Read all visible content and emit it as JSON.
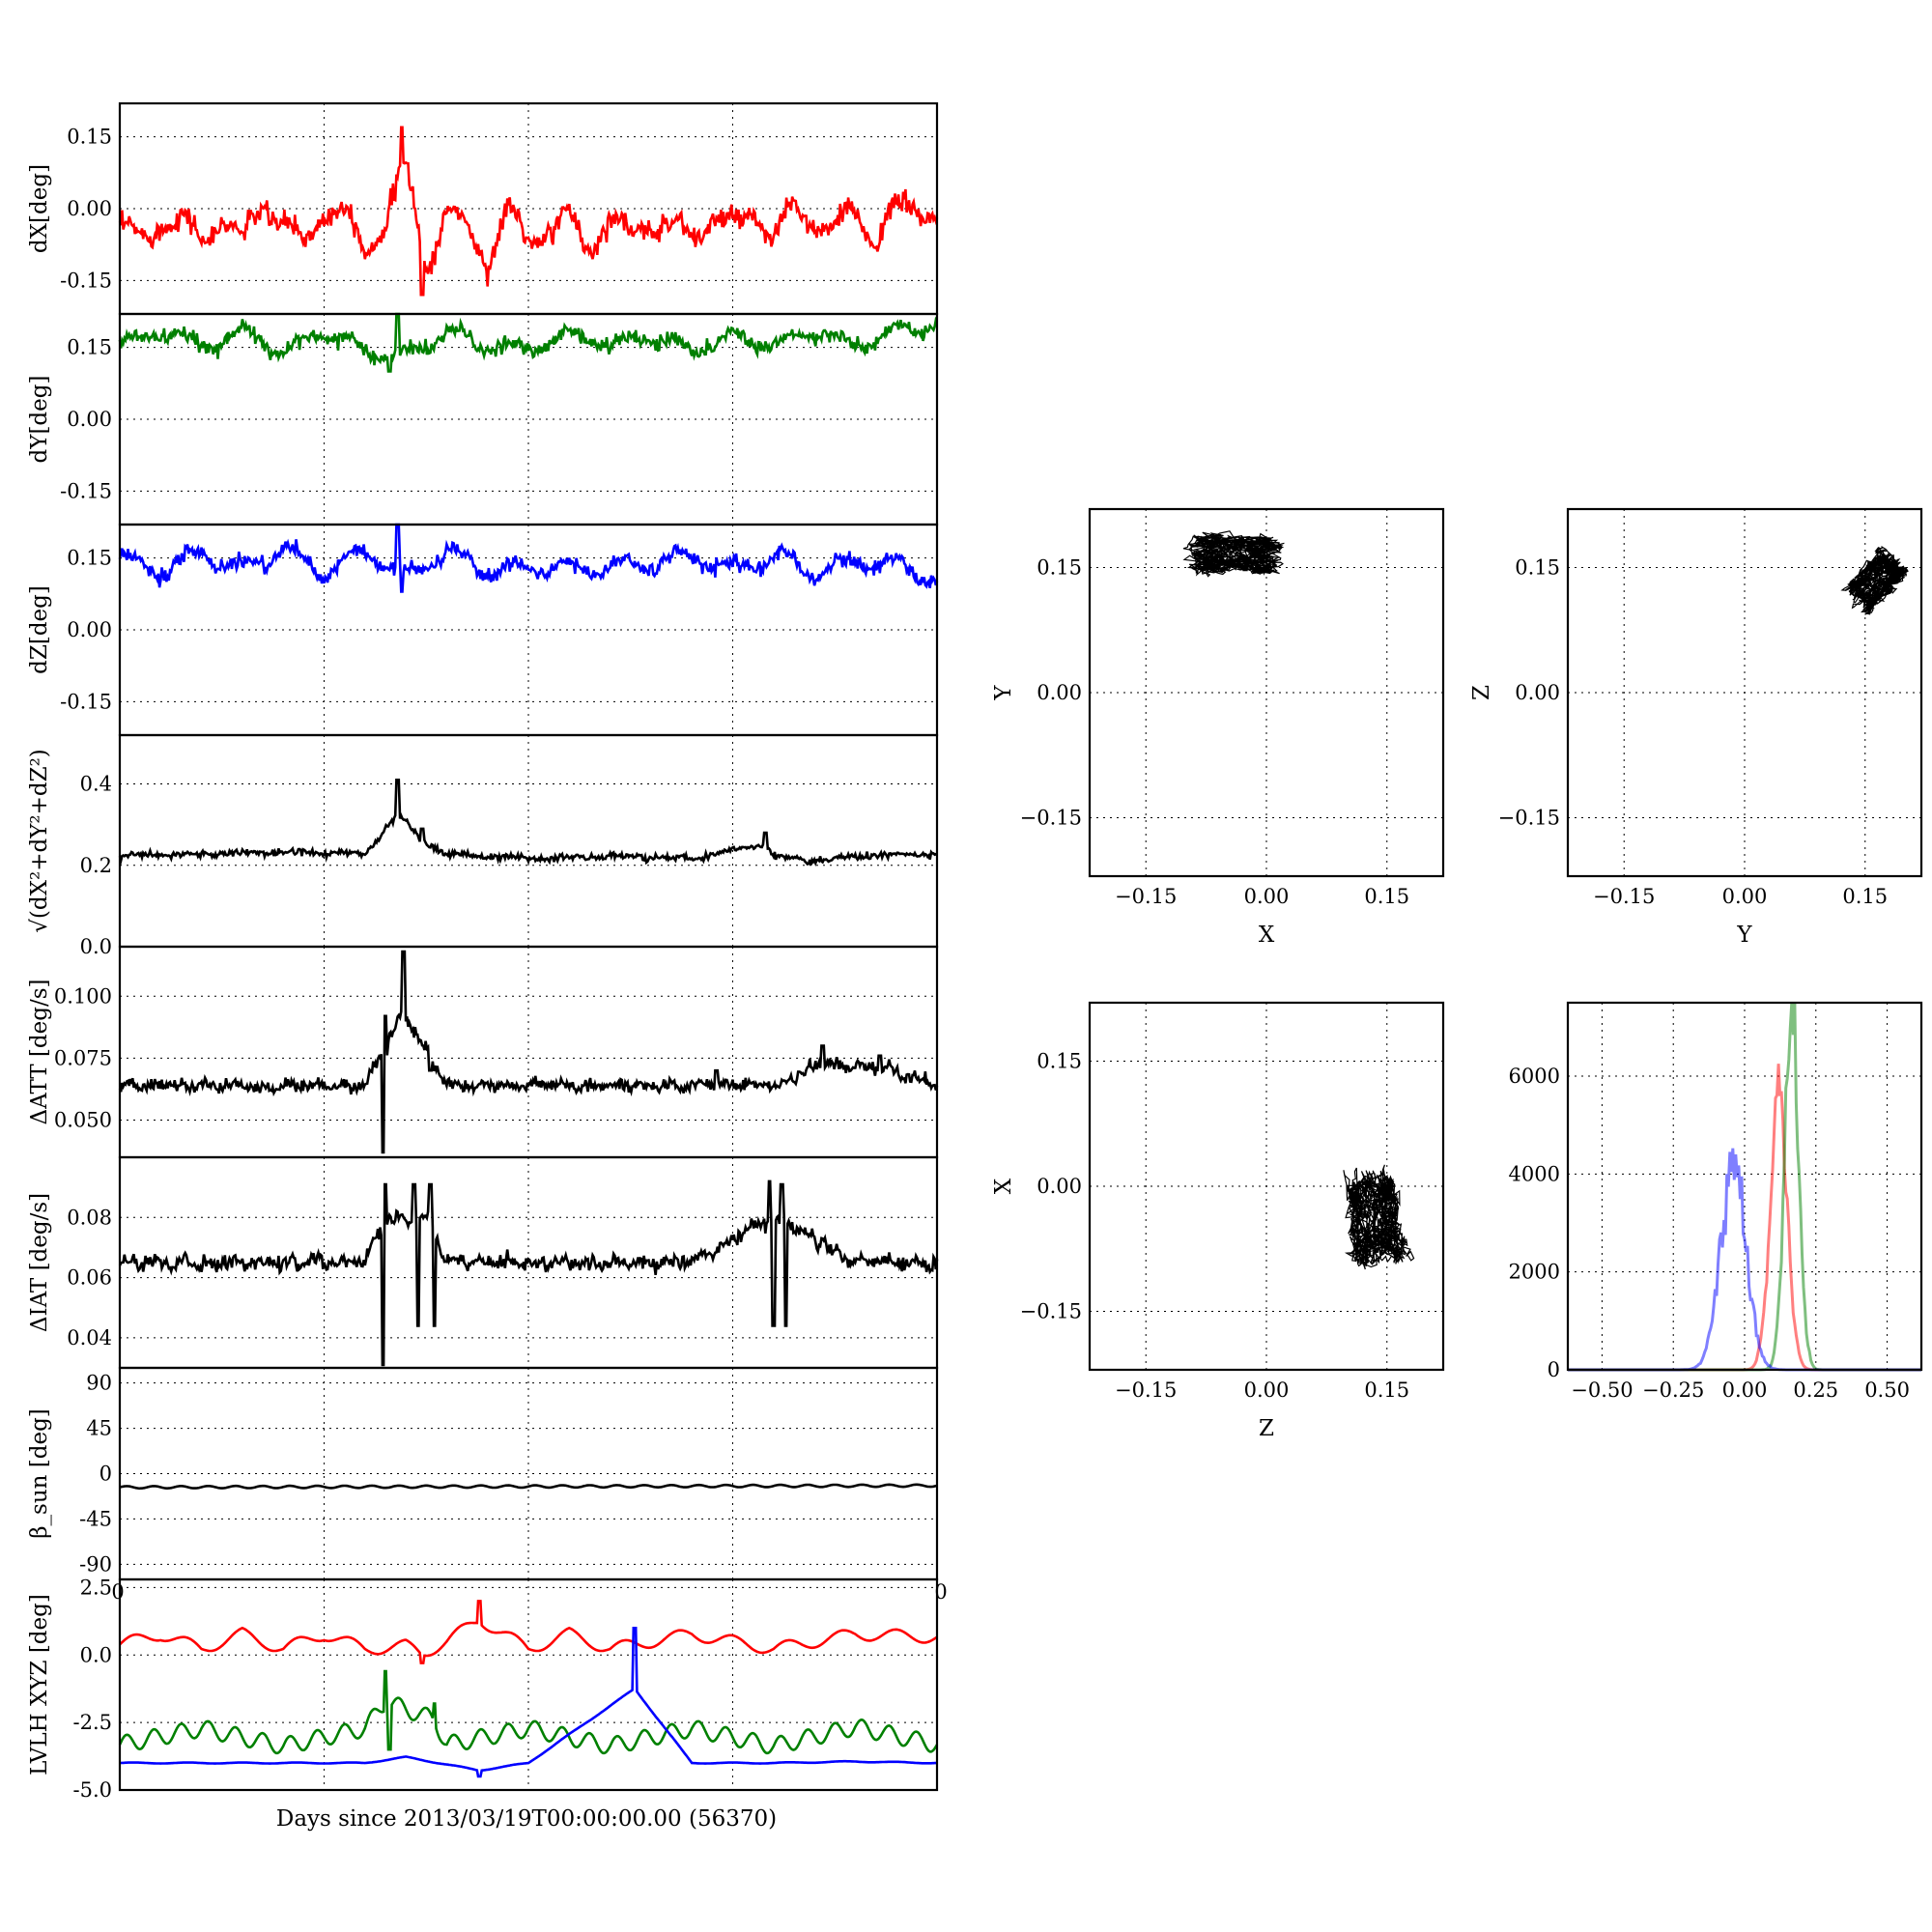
{
  "figure": {
    "xlabel": "Days since 2013/03/19T00:00:00.00 (56370)"
  },
  "chart_data": [
    {
      "type": "line",
      "ylabel": "dX[deg]",
      "ylim": [
        -0.22,
        0.22
      ],
      "yticks": [
        "0.15",
        "0.00",
        "-0.15"
      ],
      "yticks_num": [
        0.15,
        0.0,
        -0.15
      ],
      "grid": true,
      "xlim": [
        0,
        1
      ],
      "series": [
        {
          "color": "#ff0000",
          "baseline": -0.04,
          "amp": 0.055,
          "noise": 0.012,
          "cycles": 15,
          "spikes": [
            [
              0.345,
              0.17
            ],
            [
              0.37,
              -0.18
            ]
          ],
          "x": [
            0,
            0.025,
            0.05,
            0.075,
            0.1,
            0.125,
            0.15,
            0.175,
            0.2,
            0.225,
            0.25,
            0.275,
            0.3,
            0.325,
            0.35,
            0.375,
            0.4,
            0.425,
            0.45,
            0.475,
            0.5,
            0.525,
            0.55,
            0.575,
            0.6,
            0.625,
            0.65,
            0.675,
            0.7,
            0.725,
            0.75,
            0.775,
            0.8,
            0.825,
            0.85,
            0.875,
            0.9,
            0.925,
            0.95,
            0.975,
            1
          ],
          "y": [
            -0.04,
            -0.1,
            0.0,
            -0.02,
            -0.09,
            0.01,
            -0.11,
            0.07,
            -0.02,
            -0.12,
            0.05,
            0.02,
            -0.14,
            0.02,
            0.17,
            -0.18,
            0.03,
            -0.06,
            -0.15,
            0.02,
            -0.1,
            -0.03,
            -0.02,
            -0.11,
            0.01,
            -0.09,
            0.0,
            -0.04,
            -0.08,
            0.02,
            -0.06,
            0.03,
            -0.08,
            0.02,
            0.0,
            -0.07,
            0.03,
            -0.07,
            0.01,
            0.06,
            0.0
          ]
        }
      ]
    },
    {
      "type": "line",
      "ylabel": "dY[deg]",
      "ylim": [
        -0.22,
        0.22
      ],
      "yticks": [
        "0.15",
        "0.00",
        "-0.15"
      ],
      "yticks_num": [
        0.15,
        0.0,
        -0.15
      ],
      "grid": true,
      "xlim": [
        0,
        1
      ],
      "series": [
        {
          "color": "#008000",
          "baseline": 0.165,
          "amp": 0.028,
          "noise": 0.008,
          "cycles": 15,
          "spikes": [
            [
              0.33,
              0.1
            ],
            [
              0.34,
              0.22
            ]
          ],
          "x": [
            0,
            0.05,
            0.1,
            0.15,
            0.2,
            0.25,
            0.3,
            0.35,
            0.4,
            0.45,
            0.5,
            0.55,
            0.6,
            0.65,
            0.7,
            0.75,
            0.8,
            0.85,
            0.9,
            0.95,
            1
          ],
          "y": [
            0.14,
            0.2,
            0.14,
            0.2,
            0.12,
            0.2,
            0.13,
            0.1,
            0.2,
            0.14,
            0.13,
            0.19,
            0.15,
            0.18,
            0.13,
            0.18,
            0.15,
            0.2,
            0.14,
            0.2,
            0.22
          ]
        }
      ]
    },
    {
      "type": "line",
      "ylabel": "dZ[deg]",
      "ylim": [
        -0.22,
        0.22
      ],
      "yticks": [
        "0.15",
        "0.00",
        "-0.15"
      ],
      "yticks_num": [
        0.15,
        0.0,
        -0.15
      ],
      "grid": true,
      "xlim": [
        0,
        1
      ],
      "series": [
        {
          "color": "#0000ff",
          "baseline": 0.135,
          "amp": 0.035,
          "noise": 0.008,
          "cycles": 15,
          "spikes": [
            [
              0.34,
              0.22
            ],
            [
              0.345,
              0.08
            ]
          ],
          "x": [
            0,
            0.05,
            0.1,
            0.15,
            0.2,
            0.25,
            0.3,
            0.35,
            0.4,
            0.45,
            0.5,
            0.55,
            0.6,
            0.65,
            0.7,
            0.75,
            0.8,
            0.85,
            0.9,
            0.95,
            1
          ],
          "y": [
            0.16,
            0.11,
            0.18,
            0.12,
            0.2,
            0.1,
            0.19,
            0.09,
            0.19,
            0.11,
            0.13,
            0.12,
            0.13,
            0.14,
            0.17,
            0.12,
            0.17,
            0.11,
            0.15,
            0.14,
            0.08
          ]
        }
      ]
    },
    {
      "type": "line",
      "ylabel": "√(dX²+dY²+dZ²)",
      "ylim": [
        0.0,
        0.52
      ],
      "yticks": [
        "0.4",
        "0.2",
        "0.0"
      ],
      "yticks_num": [
        0.4,
        0.2,
        0.0
      ],
      "grid": true,
      "xlim": [
        0,
        1
      ],
      "series": [
        {
          "color": "#000000",
          "baseline": 0.225,
          "amp": 0.006,
          "noise": 0.004,
          "cycles": 15,
          "spikes": [
            [
              0.34,
              0.41
            ],
            [
              0.37,
              0.29
            ],
            [
              0.79,
              0.28
            ]
          ],
          "x": [
            0,
            0.1,
            0.2,
            0.3,
            0.34,
            0.37,
            0.4,
            0.5,
            0.6,
            0.7,
            0.79,
            0.8,
            0.85,
            0.9,
            1
          ],
          "y": [
            0.22,
            0.23,
            0.24,
            0.23,
            0.41,
            0.29,
            0.23,
            0.21,
            0.22,
            0.21,
            0.28,
            0.22,
            0.2,
            0.22,
            0.23
          ]
        }
      ]
    },
    {
      "type": "line",
      "ylabel": "ΔATT [deg/s]",
      "ylim": [
        0.035,
        0.12
      ],
      "yticks": [
        "0.100",
        "0.075",
        "0.050"
      ],
      "yticks_num": [
        0.1,
        0.075,
        0.05
      ],
      "grid": true,
      "xlim": [
        0,
        1
      ],
      "series": [
        {
          "color": "#000000",
          "baseline": 0.064,
          "amp": 0.002,
          "noise": 0.0012,
          "cycles": 30,
          "spikes": [
            [
              0.325,
              0.092
            ],
            [
              0.322,
              0.037
            ],
            [
              0.347,
              0.118
            ],
            [
              0.38,
              0.07
            ],
            [
              0.73,
              0.07
            ],
            [
              0.86,
              0.08
            ],
            [
              0.93,
              0.076
            ]
          ],
          "x": [
            0,
            0.1,
            0.2,
            0.3,
            0.325,
            0.347,
            0.4,
            0.5,
            0.6,
            0.7,
            0.8,
            0.86,
            0.93,
            1
          ],
          "y": [
            0.064,
            0.064,
            0.063,
            0.064,
            0.092,
            0.118,
            0.064,
            0.064,
            0.064,
            0.064,
            0.064,
            0.08,
            0.076,
            0.065
          ]
        }
      ]
    },
    {
      "type": "line",
      "ylabel": "ΔIAT [deg/s]",
      "ylim": [
        0.03,
        0.1
      ],
      "yticks": [
        "0.08",
        "0.06",
        "0.04"
      ],
      "yticks_num": [
        0.08,
        0.06,
        0.04
      ],
      "grid": true,
      "xlim": [
        0,
        1
      ],
      "series": [
        {
          "color": "#000000",
          "baseline": 0.065,
          "amp": 0.002,
          "noise": 0.0012,
          "cycles": 30,
          "spikes": [
            [
              0.325,
              0.091
            ],
            [
              0.322,
              0.031
            ],
            [
              0.36,
              0.091
            ],
            [
              0.365,
              0.044
            ],
            [
              0.38,
              0.091
            ],
            [
              0.385,
              0.044
            ],
            [
              0.795,
              0.092
            ],
            [
              0.8,
              0.044
            ],
            [
              0.81,
              0.091
            ],
            [
              0.815,
              0.044
            ]
          ],
          "x": [
            0,
            0.1,
            0.2,
            0.3,
            0.325,
            0.36,
            0.38,
            0.4,
            0.5,
            0.6,
            0.7,
            0.795,
            0.81,
            0.9,
            1
          ],
          "y": [
            0.065,
            0.065,
            0.065,
            0.065,
            0.091,
            0.091,
            0.091,
            0.065,
            0.065,
            0.065,
            0.065,
            0.092,
            0.091,
            0.065,
            0.065
          ]
        }
      ]
    },
    {
      "type": "line",
      "ylabel": "β_sun [deg]",
      "ylim": [
        -105,
        105
      ],
      "yticks": [
        "90",
        "45",
        "0",
        "-45",
        "-90"
      ],
      "yticks_num": [
        90,
        45,
        0,
        -45,
        -90
      ],
      "grid": true,
      "xlim": [
        0,
        1
      ],
      "xticks": [
        "0",
        "0"
      ],
      "series": [
        {
          "color": "#000000",
          "baseline": -13,
          "amp": 2.5,
          "noise": 0,
          "cycles": 30,
          "spikes": [],
          "x": [
            0,
            0.5,
            1
          ],
          "y": [
            -14,
            -12.5,
            -11
          ]
        }
      ]
    },
    {
      "type": "line",
      "ylabel": "LVLH XYZ [deg]",
      "ylim": [
        -5.0,
        2.8
      ],
      "yticks": [
        "2.5",
        "0.0",
        "-2.5",
        "-5.0"
      ],
      "yticks_num": [
        2.5,
        0.0,
        -2.5,
        -5.0
      ],
      "grid": true,
      "xlim": [
        0,
        1
      ],
      "series": [
        {
          "color": "#ff0000",
          "baseline": 0.5,
          "amp": 0.5,
          "noise": 0,
          "cycles": 15,
          "spikes": [
            [
              0.37,
              -0.3
            ],
            [
              0.44,
              2.0
            ]
          ],
          "x": [
            0,
            0.05,
            0.1,
            0.15,
            0.2,
            0.25,
            0.3,
            0.35,
            0.37,
            0.4,
            0.44,
            0.5,
            0.55,
            0.6,
            0.7,
            0.8,
            0.9,
            1
          ],
          "y": [
            0.3,
            1.0,
            0.0,
            1.0,
            0.0,
            1.0,
            0.0,
            0.2,
            -0.3,
            0.5,
            2.0,
            0.0,
            1.0,
            0.0,
            1.0,
            0.0,
            1.0,
            0.8
          ]
        },
        {
          "color": "#008000",
          "baseline": -3.1,
          "amp": 0.7,
          "noise": 0,
          "cycles": 30,
          "spikes": [
            [
              0.325,
              -0.6
            ],
            [
              0.33,
              -3.5
            ],
            [
              0.385,
              -1.8
            ]
          ],
          "x": [
            0,
            0.1,
            0.2,
            0.3,
            0.325,
            0.385,
            0.4,
            0.5,
            0.6,
            0.7,
            0.8,
            0.9,
            1
          ],
          "y": [
            -3.5,
            -2.4,
            -3.6,
            -2.4,
            -0.6,
            -1.8,
            -3.5,
            -2.4,
            -3.6,
            -2.4,
            -3.6,
            -2.3,
            -3.5
          ]
        },
        {
          "color": "#0000ff",
          "baseline": -4.0,
          "amp": 0.04,
          "noise": 0,
          "cycles": 15,
          "spikes": [
            [
              0.44,
              -4.5
            ],
            [
              0.63,
              1.0
            ]
          ],
          "x": [
            0,
            0.1,
            0.2,
            0.3,
            0.35,
            0.44,
            0.5,
            0.63,
            0.7,
            0.8,
            0.9,
            1
          ],
          "y": [
            -4.0,
            -4.0,
            -4.0,
            -4.0,
            -3.6,
            -4.5,
            -4.0,
            1.0,
            -4.0,
            -4.0,
            -3.9,
            -4.0
          ]
        }
      ]
    },
    {
      "type": "scatter",
      "xlabel": "X",
      "ylabel": "Y",
      "xlim": [
        -0.22,
        0.22
      ],
      "ylim": [
        -0.22,
        0.22
      ],
      "xticks": [
        "−0.15",
        "0.00",
        "0.15"
      ],
      "xticks_num": [
        -0.15,
        0.0,
        0.15
      ],
      "yticks": [
        "0.15",
        "0.00",
        "−0.15"
      ],
      "yticks_num": [
        0.15,
        0.0,
        -0.15
      ],
      "grid": true,
      "center": [
        -0.04,
        0.165
      ],
      "spread": [
        0.06,
        0.025
      ],
      "tilt": 0.0
    },
    {
      "type": "scatter",
      "xlabel": "Y",
      "ylabel": "Z",
      "xlim": [
        -0.22,
        0.22
      ],
      "ylim": [
        -0.22,
        0.22
      ],
      "xticks": [
        "−0.15",
        "0.00",
        "0.15"
      ],
      "xticks_num": [
        -0.15,
        0.0,
        0.15
      ],
      "yticks": [
        "0.15",
        "0.00",
        "−0.15"
      ],
      "yticks_num": [
        0.15,
        0.0,
        -0.15
      ],
      "grid": true,
      "center": [
        0.165,
        0.135
      ],
      "spread": [
        0.025,
        0.04
      ],
      "tilt": -0.8
    },
    {
      "type": "scatter",
      "xlabel": "Z",
      "ylabel": "X",
      "xlim": [
        -0.22,
        0.22
      ],
      "ylim": [
        -0.22,
        0.22
      ],
      "xticks": [
        "−0.15",
        "0.00",
        "0.15"
      ],
      "xticks_num": [
        -0.15,
        0.0,
        0.15
      ],
      "yticks": [
        "0.15",
        "0.00",
        "−0.15"
      ],
      "yticks_num": [
        0.15,
        0.0,
        -0.15
      ],
      "grid": true,
      "center": [
        0.135,
        -0.04
      ],
      "spread": [
        0.035,
        0.06
      ],
      "tilt": 0.1
    },
    {
      "type": "histogram",
      "xlim": [
        -0.62,
        0.62
      ],
      "ylim": [
        0,
        7500
      ],
      "xticks": [
        "−0.50",
        "−0.25",
        "0.00",
        "0.25",
        "0.50"
      ],
      "xticks_num": [
        -0.5,
        -0.25,
        0.0,
        0.25,
        0.5
      ],
      "yticks": [
        "6000",
        "4000",
        "2000",
        "0"
      ],
      "yticks_num": [
        6000,
        4000,
        2000,
        0
      ],
      "grid": true,
      "series": [
        {
          "color": "#ff0000",
          "opacity": 0.5,
          "mean": 0.12,
          "sd": 0.03,
          "peak": 5800
        },
        {
          "color": "#008000",
          "opacity": 0.5,
          "mean": 0.165,
          "sd": 0.025,
          "peak": 7100
        },
        {
          "color": "#0000ff",
          "opacity": 0.5,
          "mean": -0.04,
          "sd": 0.045,
          "peak": 4100
        }
      ]
    }
  ]
}
